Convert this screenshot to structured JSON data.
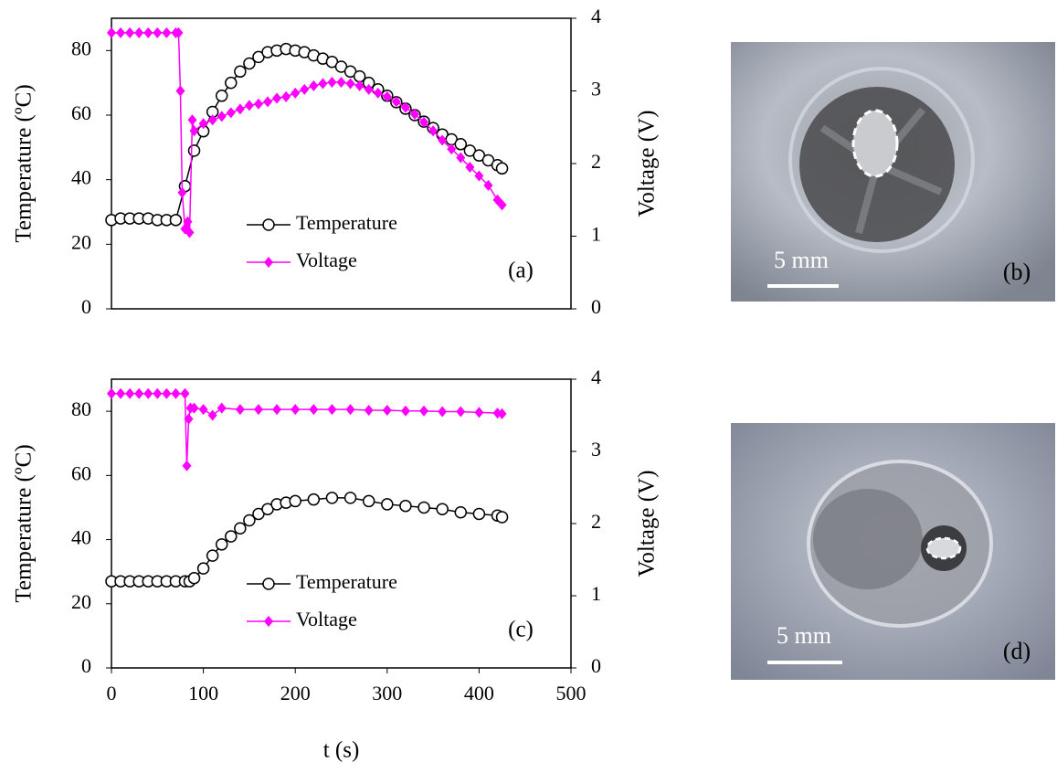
{
  "chart_data": [
    {
      "type": "line",
      "legend_labels_in_plot": true,
      "panel_label": "(a)",
      "ylabel": "Temperature (ºC)",
      "y2label": "Voltage (V)",
      "xlim": [
        0,
        500
      ],
      "ylim": [
        0,
        90
      ],
      "yticks": [
        0,
        20,
        40,
        60,
        80
      ],
      "y2lim": [
        0,
        4
      ],
      "y2ticks": [
        0,
        1,
        2,
        3,
        4
      ],
      "series": [
        {
          "name": "Temperature",
          "color": "#000000",
          "marker": "circle",
          "x": [
            0,
            10,
            20,
            30,
            40,
            50,
            60,
            70,
            80,
            90,
            100,
            110,
            120,
            130,
            140,
            150,
            160,
            170,
            180,
            190,
            200,
            210,
            220,
            230,
            240,
            250,
            260,
            270,
            280,
            290,
            300,
            310,
            320,
            330,
            340,
            350,
            360,
            370,
            380,
            390,
            400,
            410,
            420,
            425
          ],
          "values": [
            27.5,
            28,
            28,
            28,
            28,
            27.5,
            27.5,
            27.5,
            38,
            49,
            55,
            61,
            66,
            70,
            73.5,
            76,
            78,
            79.5,
            80,
            80.5,
            80,
            79.5,
            78.5,
            77.5,
            76.5,
            75,
            73.5,
            72,
            70,
            68,
            66,
            64,
            62,
            60,
            58,
            56,
            54,
            52.5,
            51,
            49,
            47.5,
            46,
            44.5,
            43.5
          ]
        },
        {
          "name": "Voltage",
          "color": "#ff00ff",
          "marker": "diamond",
          "axis": "y2",
          "x": [
            0,
            10,
            20,
            30,
            40,
            50,
            60,
            70,
            73,
            75,
            77,
            80,
            83,
            85,
            88,
            90,
            100,
            110,
            120,
            130,
            140,
            150,
            160,
            170,
            180,
            190,
            200,
            210,
            220,
            230,
            240,
            250,
            260,
            270,
            280,
            290,
            300,
            310,
            320,
            330,
            340,
            350,
            360,
            370,
            380,
            390,
            400,
            410,
            420,
            425
          ],
          "values": [
            3.8,
            3.8,
            3.8,
            3.8,
            3.8,
            3.8,
            3.8,
            3.8,
            3.8,
            3.0,
            1.6,
            1.1,
            1.2,
            1.05,
            2.6,
            2.45,
            2.55,
            2.6,
            2.65,
            2.7,
            2.75,
            2.8,
            2.82,
            2.85,
            2.9,
            2.92,
            2.97,
            3.02,
            3.07,
            3.1,
            3.12,
            3.12,
            3.1,
            3.07,
            3.02,
            2.97,
            2.92,
            2.85,
            2.77,
            2.68,
            2.57,
            2.45,
            2.32,
            2.2,
            2.08,
            1.95,
            1.83,
            1.7,
            1.5,
            1.43
          ]
        }
      ]
    },
    {
      "type": "line",
      "panel_label": "(c)",
      "xlabel": "t (s)",
      "ylabel": "Temperature (ºC)",
      "y2label": "Voltage (V)",
      "xlim": [
        0,
        500
      ],
      "xticks": [
        0,
        100,
        200,
        300,
        400,
        500
      ],
      "ylim": [
        0,
        90
      ],
      "yticks": [
        0,
        20,
        40,
        60,
        80
      ],
      "y2lim": [
        0,
        4
      ],
      "y2ticks": [
        0,
        1,
        2,
        3,
        4
      ],
      "series": [
        {
          "name": "Temperature",
          "color": "#000000",
          "marker": "circle",
          "x": [
            0,
            10,
            20,
            30,
            40,
            50,
            60,
            70,
            80,
            85,
            90,
            100,
            110,
            120,
            130,
            140,
            150,
            160,
            170,
            180,
            190,
            200,
            220,
            240,
            260,
            280,
            300,
            320,
            340,
            360,
            380,
            400,
            420,
            425
          ],
          "values": [
            27,
            27,
            27,
            27,
            27,
            27,
            27,
            27,
            27,
            27,
            28,
            31,
            35,
            38.5,
            41,
            43.5,
            46,
            48,
            49.5,
            51,
            51.5,
            52,
            52.5,
            53,
            53,
            52,
            51,
            50.5,
            50,
            49.5,
            48.5,
            48,
            47.5,
            47
          ]
        },
        {
          "name": "Voltage",
          "color": "#ff00ff",
          "marker": "diamond",
          "axis": "y2",
          "x": [
            0,
            10,
            20,
            30,
            40,
            50,
            60,
            70,
            80,
            82,
            84,
            86,
            90,
            100,
            110,
            120,
            140,
            160,
            180,
            200,
            220,
            240,
            260,
            280,
            300,
            320,
            340,
            360,
            380,
            400,
            420,
            425
          ],
          "values": [
            3.8,
            3.8,
            3.8,
            3.8,
            3.8,
            3.8,
            3.8,
            3.8,
            3.8,
            2.8,
            3.45,
            3.6,
            3.6,
            3.58,
            3.5,
            3.6,
            3.58,
            3.58,
            3.58,
            3.58,
            3.58,
            3.58,
            3.58,
            3.57,
            3.57,
            3.56,
            3.56,
            3.55,
            3.55,
            3.54,
            3.53,
            3.52
          ]
        }
      ]
    }
  ],
  "photos": [
    {
      "scale_label": "5 mm",
      "label": "(b)"
    },
    {
      "scale_label": "5 mm",
      "label": "(d)"
    }
  ]
}
